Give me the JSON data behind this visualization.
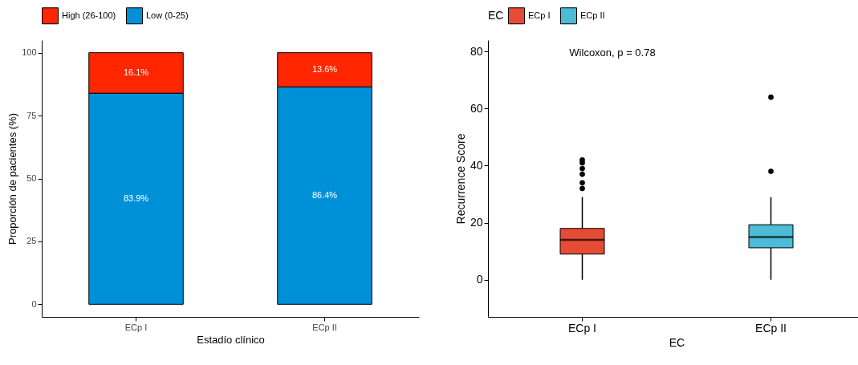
{
  "chart_data": [
    {
      "type": "bar",
      "stacked": true,
      "categories": [
        "ECp I",
        "ECp II"
      ],
      "xlabel": "Estadío clínico",
      "ylabel": "Proporción de pacientes (%)",
      "ylim": [
        -5,
        105
      ],
      "yticks": [
        0,
        25,
        50,
        75,
        100
      ],
      "legend": "top",
      "series": [
        {
          "name": "Low (0-25)",
          "color": "#0090d8",
          "values": [
            83.9,
            86.4
          ],
          "value_labels": [
            "83.9%",
            "86.4%"
          ]
        },
        {
          "name": "High (26-100)",
          "color": "#ff2600",
          "values": [
            16.1,
            13.6
          ],
          "value_labels": [
            "16.1%",
            "13.6%"
          ]
        }
      ]
    },
    {
      "type": "box",
      "categories": [
        "ECp I",
        "ECp II"
      ],
      "xlabel": "EC",
      "ylabel": "Recurrence Score",
      "legend_title": "EC",
      "legend": "top",
      "ylim": [
        -13,
        84
      ],
      "yticks": [
        0,
        20,
        40,
        60,
        80
      ],
      "annotations": [
        "Wilcoxon, p = 0.78"
      ],
      "series": [
        {
          "name": "ECp I",
          "color": "#e64b35",
          "boxes": [
            {
              "low": 0,
              "q1": 9,
              "median": 14,
              "q3": 18,
              "high": 29,
              "outliers": [
                32,
                34,
                37,
                39,
                41,
                42
              ]
            },
            null
          ]
        },
        {
          "name": "ECp II",
          "color": "#4dbbd5",
          "boxes": [
            null,
            {
              "low": 0,
              "q1": 11.2,
              "median": 15,
              "q3": 19.3,
              "high": 29,
              "outliers": [
                38,
                64
              ]
            }
          ]
        }
      ]
    }
  ]
}
